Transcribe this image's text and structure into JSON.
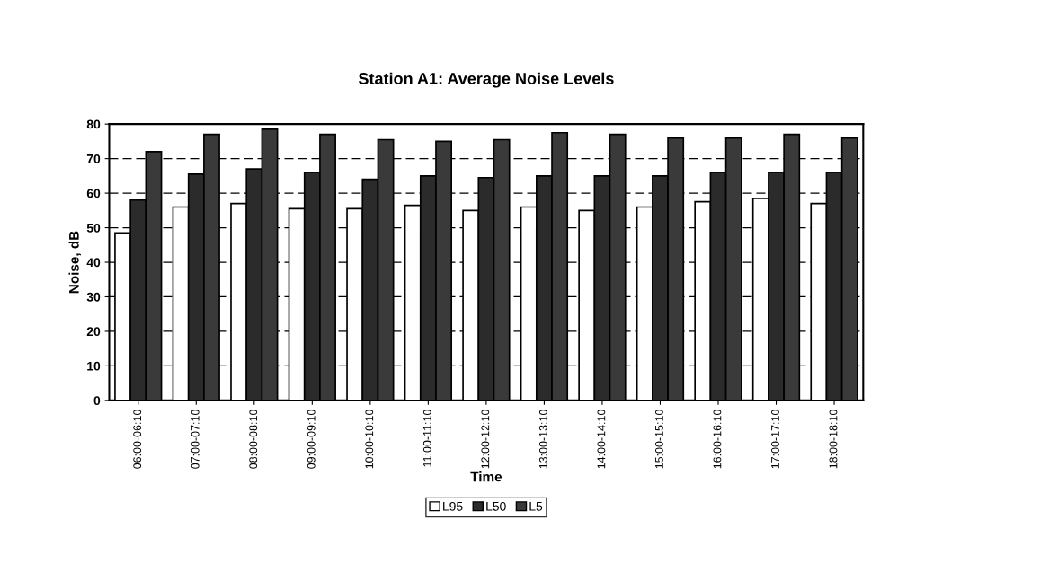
{
  "chart_data": {
    "type": "bar",
    "title": "Station A1: Average Noise Levels",
    "xlabel": "Time",
    "ylabel": "Noise, dB",
    "categories": [
      "06:00-06:10",
      "07:00-07:10",
      "08:00-08:10",
      "09:00-09:10",
      "10:00-10:10",
      "11:00-11:10",
      "12:00-12:10",
      "13:00-13:10",
      "14:00-14:10",
      "15:00-15:10",
      "16:00-16:10",
      "17:00-17:10",
      "18:00-18:10"
    ],
    "series": [
      {
        "name": "L95",
        "color": "#ffffff",
        "values": [
          48.5,
          56,
          57,
          55.5,
          55.5,
          56.5,
          55,
          56,
          55,
          56,
          57.5,
          58.5,
          57
        ]
      },
      {
        "name": "L50",
        "color": "#2b2b2b",
        "values": [
          58,
          65.5,
          67,
          66,
          64,
          65,
          64.5,
          65,
          65,
          65,
          66,
          66,
          66
        ]
      },
      {
        "name": "L5",
        "color": "#3a3a3a",
        "values": [
          72,
          77,
          78.5,
          77,
          75.5,
          75,
          75.5,
          77.5,
          77,
          76,
          76,
          77,
          76
        ]
      }
    ],
    "ylim": [
      0,
      80
    ],
    "yticks": [
      0,
      10,
      20,
      30,
      40,
      50,
      60,
      70,
      80
    ],
    "grid": "y",
    "legend": "bottom"
  }
}
